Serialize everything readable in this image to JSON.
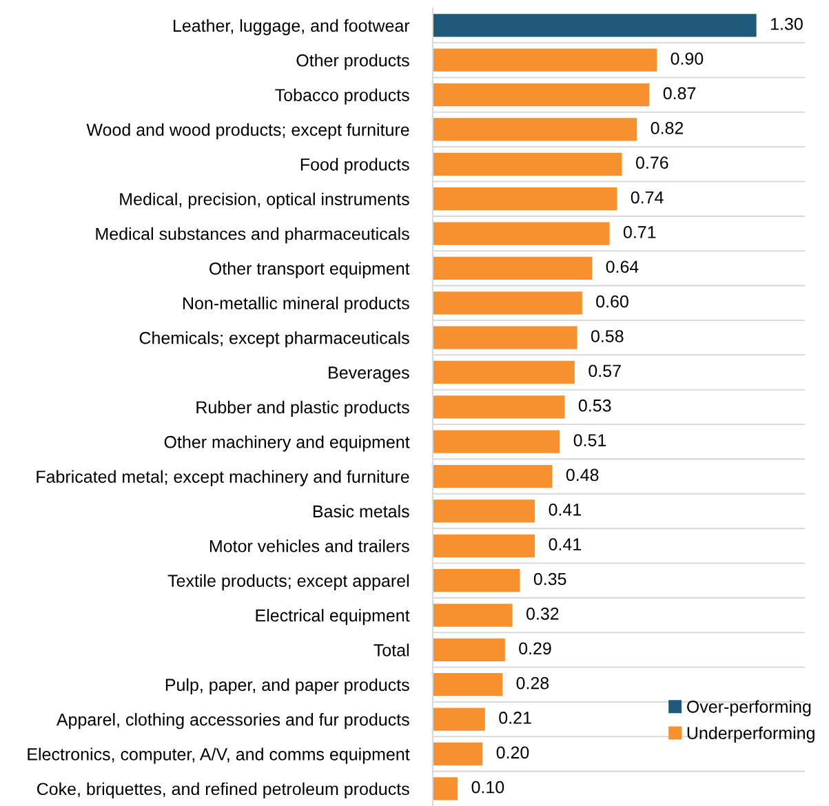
{
  "chart_data": {
    "type": "bar",
    "orientation": "horizontal",
    "categories": [
      "Leather, luggage, and footwear",
      "Other products",
      "Tobacco products",
      "Wood and wood products; except furniture",
      "Food products",
      "Medical, precision, optical instruments",
      "Medical substances and pharmaceuticals",
      "Other transport equipment",
      "Non-metallic mineral products",
      "Chemicals; except pharmaceuticals",
      "Beverages",
      "Rubber and plastic products",
      "Other machinery and equipment",
      "Fabricated metal; except machinery and furniture",
      "Basic metals",
      "Motor vehicles and trailers",
      "Textile products; except apparel",
      "Electrical equipment",
      "Total",
      "Pulp, paper, and paper products",
      "Apparel, clothing accessories and fur products",
      "Electronics, computer, A/V, and comms equipment",
      "Coke, briquettes, and refined petroleum products"
    ],
    "series": [
      {
        "name": "Over-performing",
        "color": "#1f5a7a",
        "values": [
          1.3,
          null,
          null,
          null,
          null,
          null,
          null,
          null,
          null,
          null,
          null,
          null,
          null,
          null,
          null,
          null,
          null,
          null,
          null,
          null,
          null,
          null,
          null
        ],
        "value_labels": [
          "1.30",
          null,
          null,
          null,
          null,
          null,
          null,
          null,
          null,
          null,
          null,
          null,
          null,
          null,
          null,
          null,
          null,
          null,
          null,
          null,
          null,
          null,
          null
        ]
      },
      {
        "name": "Underperforming",
        "color": "#f7902f",
        "values": [
          null,
          0.9,
          0.87,
          0.82,
          0.76,
          0.74,
          0.71,
          0.64,
          0.6,
          0.58,
          0.57,
          0.53,
          0.51,
          0.48,
          0.41,
          0.41,
          0.35,
          0.32,
          0.29,
          0.28,
          0.21,
          0.2,
          0.1
        ],
        "value_labels": [
          null,
          "0.90",
          "0.87",
          "0.82",
          "0.76",
          "0.74",
          "0.71",
          "0.64",
          "0.60",
          "0.58",
          "0.57",
          "0.53",
          "0.51",
          "0.48",
          "0.41",
          "0.41",
          "0.35",
          "0.32",
          "0.29",
          "0.28",
          "0.21",
          "0.20",
          "0.10"
        ]
      }
    ],
    "grid": "y",
    "legend": "bottom right"
  }
}
